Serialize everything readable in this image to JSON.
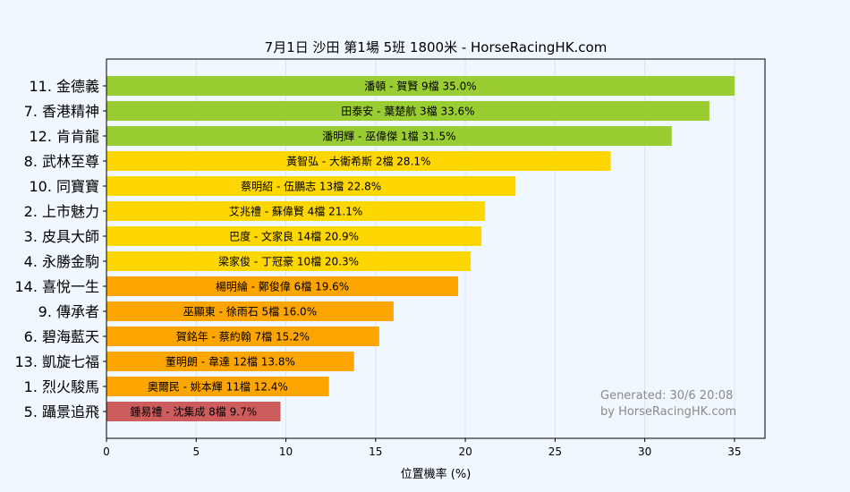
{
  "chart_data": {
    "type": "bar",
    "orientation": "horizontal",
    "title": "7月1日  沙田  第1場  5班  1800米 - HorseRacingHK.com",
    "xlabel": "位置機率 (%)",
    "ylabel": "",
    "xlim": [
      0,
      36.7
    ],
    "xticks": [
      "0",
      "5",
      "10",
      "15",
      "20",
      "25",
      "30",
      "35"
    ],
    "grid": true,
    "categories": [
      "11. 金德義",
      "7. 香港精神",
      "12. 肯肯龍",
      "8. 武林至尊",
      "10. 同寶寶",
      "2. 上市魅力",
      "3. 皮具大師",
      "4. 永勝金駒",
      "14. 喜悅一生",
      "9. 傳承者",
      "6. 碧海藍天",
      "13. 凱旋七福",
      "1. 烈火駿馬",
      "5. 躡景追飛"
    ],
    "values": [
      35.0,
      33.6,
      31.5,
      28.1,
      22.8,
      21.1,
      20.9,
      20.3,
      19.6,
      16.0,
      15.2,
      13.8,
      12.4,
      9.7
    ],
    "bar_labels": [
      "潘頓 - 賀賢 9檔  35.0%",
      "田泰安 - 葉楚航 3檔  33.6%",
      "潘明輝 - 巫偉傑 1檔  31.5%",
      "黃智弘 - 大衛希斯 2檔  28.1%",
      "蔡明紹 - 伍鵬志 13檔  22.8%",
      "艾兆禮 - 蘇偉賢 4檔  21.1%",
      "巴度 - 文家良 14檔  20.9%",
      "梁家俊 - 丁冠豪 10檔  20.3%",
      "楊明綸 - 鄭俊偉 6檔  19.6%",
      "巫顯東 - 徐雨石 5檔  16.0%",
      "賀銘年 - 蔡約翰 7檔  15.2%",
      "董明朗 - 韋達 12檔  13.8%",
      "奧爾民 - 姚本輝 11檔  12.4%",
      "鍾易禮 - 沈集成 8檔  9.7%"
    ],
    "bar_colors": [
      "#9acd32",
      "#9acd32",
      "#9acd32",
      "#ffd700",
      "#ffd700",
      "#ffd700",
      "#ffd700",
      "#ffd700",
      "#ffa500",
      "#ffa500",
      "#ffa500",
      "#ffa500",
      "#ffa500",
      "#cd5c5c"
    ],
    "annotations": [
      "Generated: 30/6 20:08",
      "by HorseRacingHK.com"
    ]
  },
  "colors": {
    "background": "#f0f7ff",
    "plot_background": "#f0f7ff",
    "grid": "#d8e4f0",
    "axis": "#000000",
    "watermark": "#8a8a8a"
  }
}
